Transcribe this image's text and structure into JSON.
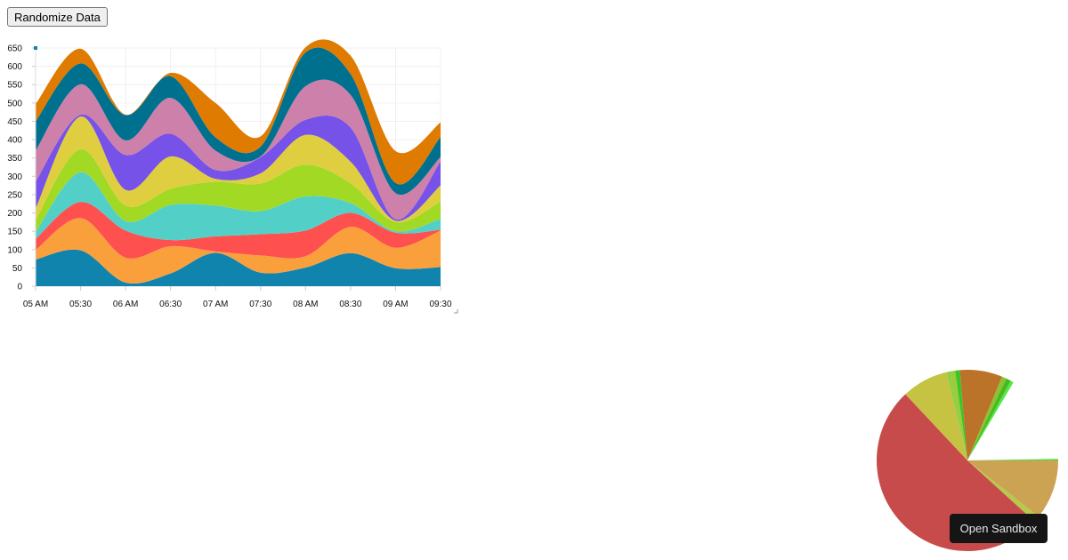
{
  "toolbar": {
    "randomize_label": "Randomize Data"
  },
  "sandbox_button": {
    "label": "Open Sandbox"
  },
  "chart_data": [
    {
      "type": "area",
      "stacked": true,
      "interpolation": "smooth",
      "categories": [
        "05 AM",
        "05:30",
        "06 AM",
        "06:30",
        "07 AM",
        "07:30",
        "08 AM",
        "08:30",
        "09 AM",
        "09:30"
      ],
      "yticks": [
        0,
        50,
        100,
        150,
        200,
        250,
        300,
        350,
        400,
        450,
        500,
        550,
        600,
        650
      ],
      "ylim": [
        0,
        650
      ],
      "grid": true,
      "series": [
        {
          "color": "#1184ae",
          "values": [
            73,
            98,
            10,
            35,
            91,
            37,
            51,
            90,
            49,
            52
          ]
        },
        {
          "color": "#f9a03c",
          "values": [
            26,
            88,
            68,
            74,
            4,
            47,
            31,
            72,
            56,
            100
          ]
        },
        {
          "color": "#ff5050",
          "values": [
            30,
            44,
            74,
            17,
            41,
            58,
            70,
            38,
            41,
            2
          ]
        },
        {
          "color": "#52d0c8",
          "values": [
            19,
            81,
            26,
            96,
            84,
            63,
            93,
            27,
            4,
            30
          ]
        },
        {
          "color": "#a2d924",
          "values": [
            32,
            63,
            42,
            44,
            65,
            75,
            87,
            54,
            25,
            47
          ]
        },
        {
          "color": "#dfcf40",
          "values": [
            32,
            89,
            43,
            88,
            8,
            28,
            81,
            59,
            4,
            44
          ]
        },
        {
          "color": "#7752e8",
          "values": [
            73,
            5,
            95,
            62,
            24,
            44,
            41,
            93,
            4,
            65
          ]
        },
        {
          "color": "#cc80aa",
          "values": [
            85,
            83,
            40,
            98,
            53,
            2,
            92,
            89,
            71,
            12
          ]
        },
        {
          "color": "#00708f",
          "values": [
            80,
            57,
            69,
            59,
            36,
            27,
            92,
            57,
            28,
            55
          ]
        },
        {
          "color": "#df7b00",
          "values": [
            47,
            40,
            1,
            9,
            94,
            28,
            14,
            50,
            87,
            40
          ]
        }
      ]
    },
    {
      "type": "pie",
      "slices": [
        {
          "color": "#cca352",
          "value": 38
        },
        {
          "color": "#b5c94a",
          "value": 4
        },
        {
          "color": "#c84b4b",
          "value": 183
        },
        {
          "color": "#c6c242",
          "value": 30
        },
        {
          "color": "#5fd74a",
          "value": 1
        },
        {
          "color": "#9ccc3a",
          "value": 4
        },
        {
          "color": "#3cc42a",
          "value": 3
        },
        {
          "color": "#bb7229",
          "value": 27
        },
        {
          "color": "#8cc232",
          "value": 3
        },
        {
          "color": "#44bb22",
          "value": 3
        },
        {
          "color": "#55e640",
          "value": 2
        },
        {
          "color": "#ffffff",
          "value": 58
        },
        {
          "color": "#55dd40",
          "value": 1
        }
      ]
    }
  ]
}
